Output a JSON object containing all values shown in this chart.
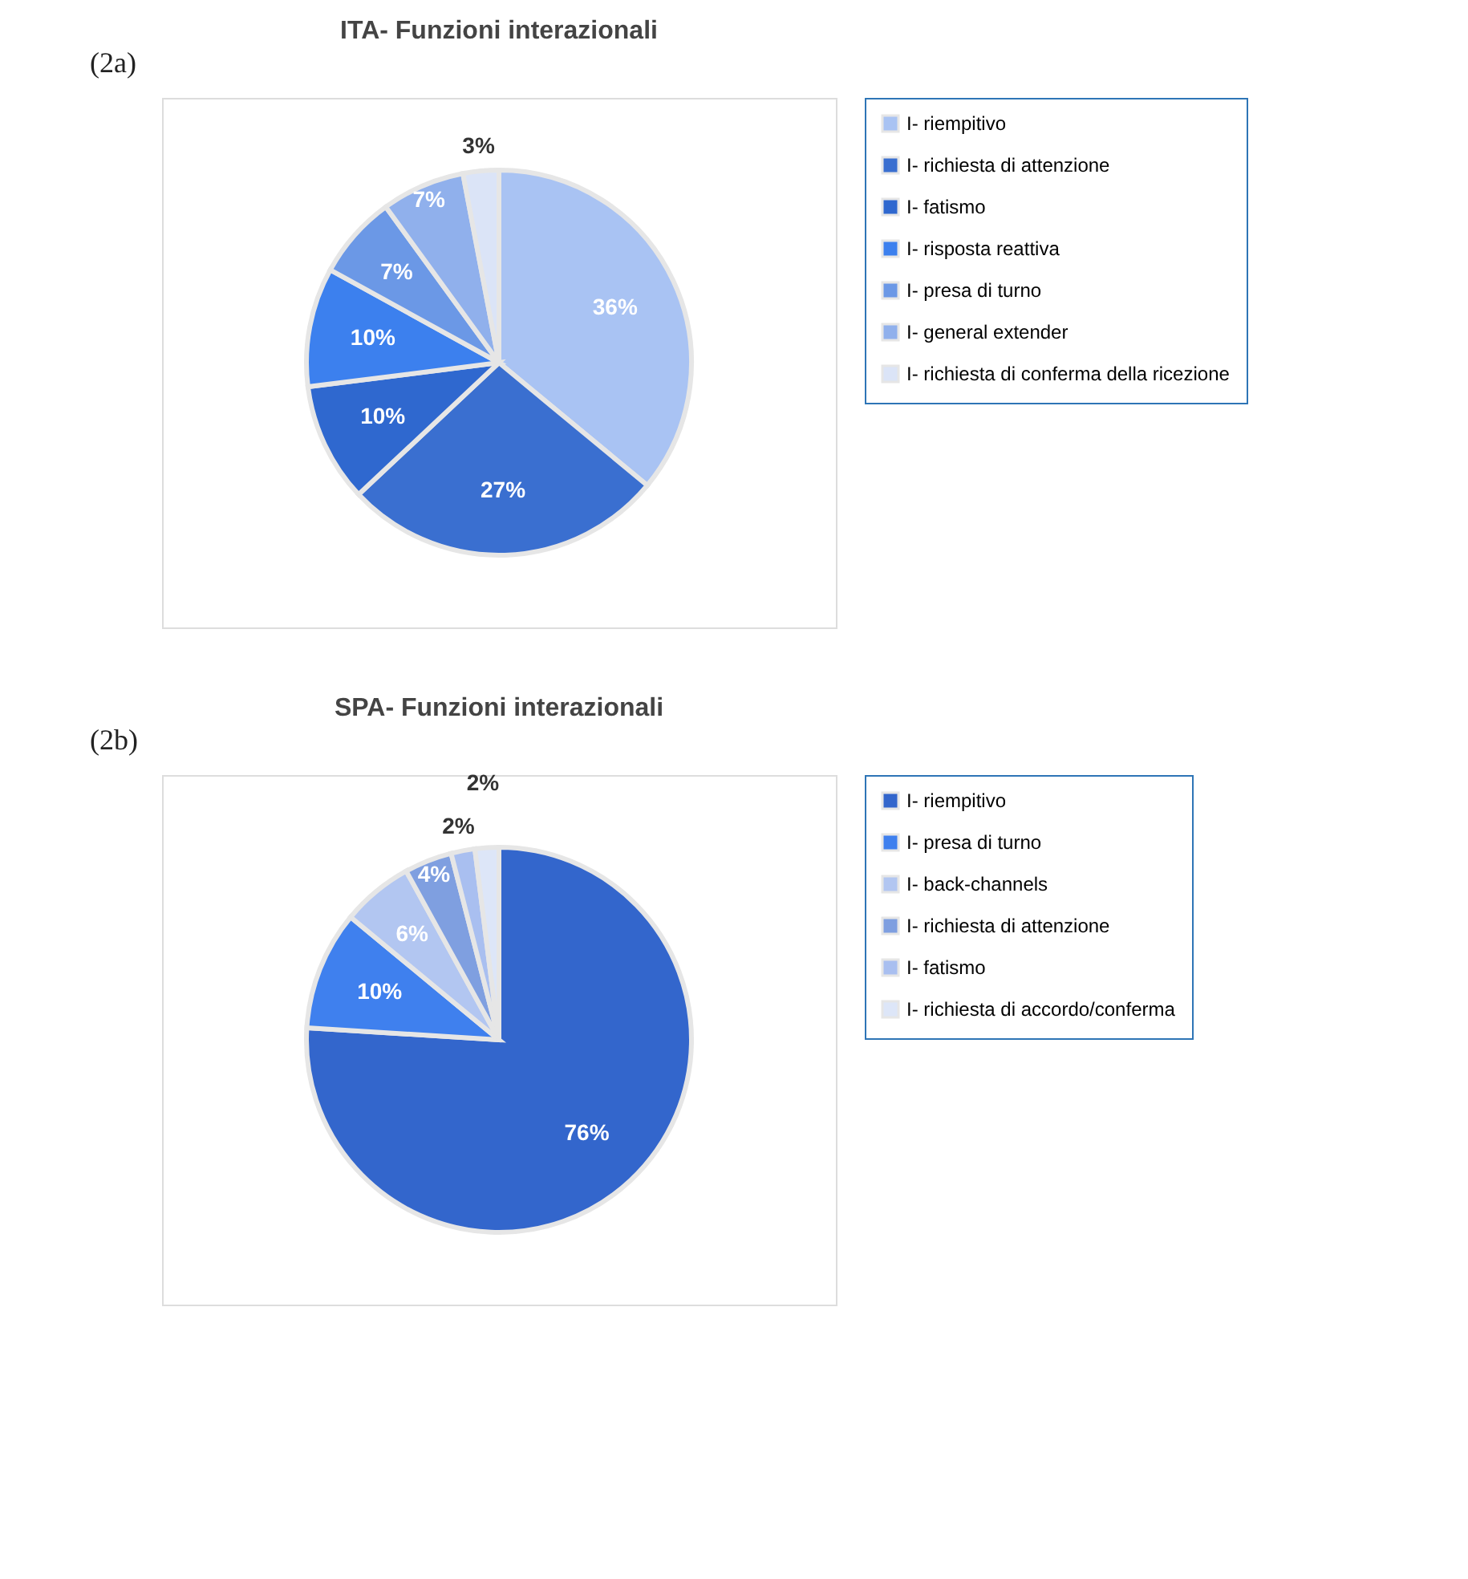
{
  "chart_data": [
    {
      "type": "pie",
      "title": "ITA- Funzioni interazionali",
      "annotations": [
        "(2a)"
      ],
      "legend": "right",
      "categories": [
        "I- riempitivo",
        "I- richiesta di attenzione",
        "I- fatismo",
        "I- risposta reattiva",
        "I- presa di turno",
        "I- general extender",
        "I- richiesta di conferma della ricezione"
      ],
      "values": [
        36,
        27,
        10,
        10,
        7,
        7,
        3
      ],
      "value_labels": [
        "36%",
        "27%",
        "10%",
        "10%",
        "7%",
        "7%",
        "3%"
      ],
      "colors": [
        "#a9c3f3",
        "#3a6fd0",
        "#2f68cf",
        "#3c80ee",
        "#6b98e6",
        "#90b0ec",
        "#dbe4f7"
      ]
    },
    {
      "type": "pie",
      "title": "SPA- Funzioni interazionali",
      "annotations": [
        "(2b)"
      ],
      "legend": "right",
      "categories": [
        "I- riempitivo",
        "I- presa di turno",
        "I- back-channels",
        "I- richiesta di attenzione",
        "I- fatismo",
        "I- richiesta di accordo/conferma"
      ],
      "values": [
        76,
        10,
        6,
        4,
        2,
        2
      ],
      "value_labels": [
        "76%",
        "10%",
        "6%",
        "4%",
        "2%",
        "2%"
      ],
      "colors": [
        "#3366cc",
        "#3f80ee",
        "#b2c6f1",
        "#7f9fe0",
        "#a9bff0",
        "#dde6f8"
      ]
    }
  ]
}
